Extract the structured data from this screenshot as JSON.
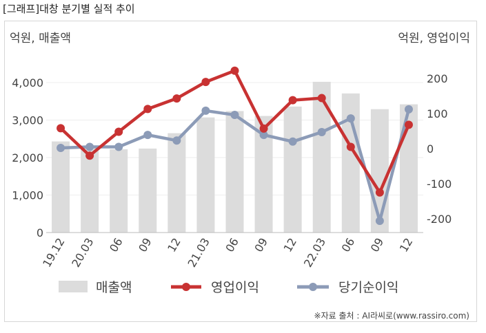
{
  "caption": "[그래프]대창 분기별 실적 추이",
  "source": "※자료 출처 : AI라씨로(www.rassiro.com)",
  "chart_data": {
    "type": "bar+line",
    "left_axis_label": "억원, 매출액",
    "right_axis_label": "억원, 영업이익",
    "left_ylim": [
      0,
      4000
    ],
    "left_ticks": [
      "0",
      "1,000",
      "2,000",
      "3,000",
      "4,000"
    ],
    "left_tick_values": [
      0,
      1000,
      2000,
      3000,
      4000
    ],
    "right_ylim": [
      -250,
      250
    ],
    "right_ticks": [
      "-200",
      "-100",
      "0",
      "100",
      "200"
    ],
    "right_tick_values": [
      -200,
      -100,
      0,
      100,
      200
    ],
    "categories": [
      "19.12",
      "20.03",
      "06",
      "09",
      "12",
      "21.03",
      "06",
      "09",
      "12",
      "22.03",
      "06",
      "09",
      "12"
    ],
    "series": [
      {
        "name": "매출액",
        "kind": "bar",
        "axis": "left",
        "color": "#dcdcdc",
        "values": [
          2430,
          2290,
          2220,
          2240,
          2650,
          3070,
          3240,
          3110,
          3360,
          4020,
          3710,
          3290,
          3420
        ]
      },
      {
        "name": "영업이익",
        "kind": "line",
        "axis": "right",
        "color": "#c83232",
        "values": [
          58,
          -20,
          48,
          113,
          143,
          190,
          222,
          57,
          138,
          144,
          5,
          -125,
          68
        ]
      },
      {
        "name": "당기순이익",
        "kind": "line",
        "axis": "right",
        "color": "#8c9bb7",
        "values": [
          2,
          5,
          5,
          39,
          23,
          108,
          96,
          39,
          20,
          47,
          86,
          -206,
          112
        ]
      }
    ],
    "legend_position": "bottom",
    "grid": true
  }
}
